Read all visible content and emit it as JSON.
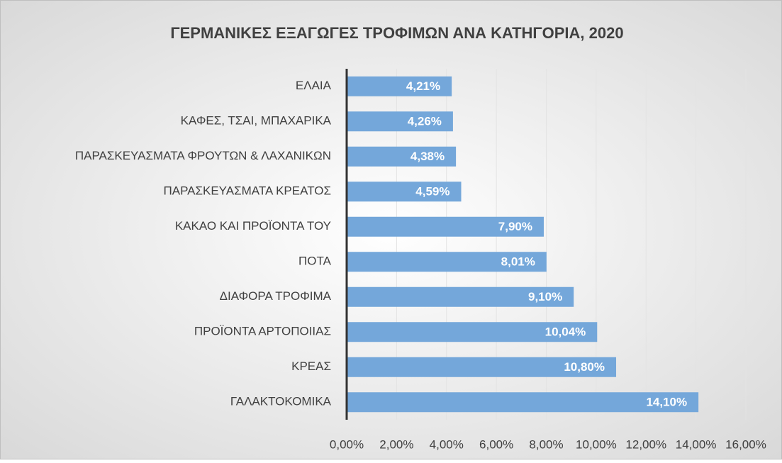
{
  "chart_data": {
    "type": "bar",
    "orientation": "horizontal",
    "title": "ΓΕΡΜΑΝΙΚΕΣ ΕΞΑΓΩΓΕΣ ΤΡΟΦΙΜΩΝ ΑΝΑ ΚΑΤΗΓΟΡΙΑ, 2020",
    "categories": [
      "ΕΛΑΙΑ",
      "ΚΑΦΕΣ, ΤΣΑΙ, ΜΠΑΧΑΡΙΚΑ",
      "ΠΑΡΑΣΚΕΥΑΣΜΑΤΑ ΦΡΟΥΤΩΝ & ΛΑΧΑΝΙΚΩΝ",
      "ΠΑΡΑΣΚΕΥΑΣΜΑΤΑ ΚΡΕΑΤΟΣ",
      "ΚΑΚΑΟ ΚΑΙ ΠΡΟΪΟΝΤΑ ΤΟΥ",
      "ΠΟΤΑ",
      "ΔΙΑΦΟΡΑ ΤΡΟΦΙΜΑ",
      "ΠΡΟΪΟΝΤΑ ΑΡΤΟΠΟΙΙΑΣ",
      "ΚΡΕΑΣ",
      "ΓΑΛΑΚΤΟΚΟΜΙΚΑ"
    ],
    "values": [
      4.21,
      4.26,
      4.38,
      4.59,
      7.9,
      8.01,
      9.1,
      10.04,
      10.8,
      14.1
    ],
    "value_labels": [
      "4,21%",
      "4,26%",
      "4,38%",
      "4,59%",
      "7,90%",
      "8,01%",
      "9,10%",
      "10,04%",
      "10,80%",
      "14,10%"
    ],
    "color": "#74a7da",
    "xlim": [
      0,
      16
    ],
    "xticks": [
      {
        "value": 0,
        "label": "0,00%"
      },
      {
        "value": 2,
        "label": "2,00%"
      },
      {
        "value": 4,
        "label": "4,00%"
      },
      {
        "value": 6,
        "label": "6,00%"
      },
      {
        "value": 8,
        "label": "8,00%"
      },
      {
        "value": 10,
        "label": "10,00%"
      },
      {
        "value": 12,
        "label": "12,00%"
      },
      {
        "value": 14,
        "label": "14,00%"
      },
      {
        "value": 16,
        "label": "16,00%"
      }
    ],
    "grid": true
  }
}
